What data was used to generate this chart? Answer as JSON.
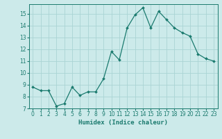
{
  "x": [
    0,
    1,
    2,
    3,
    4,
    5,
    6,
    7,
    8,
    9,
    10,
    11,
    12,
    13,
    14,
    15,
    16,
    17,
    18,
    19,
    20,
    21,
    22,
    23
  ],
  "y": [
    8.8,
    8.5,
    8.5,
    7.2,
    7.4,
    8.8,
    8.1,
    8.4,
    8.4,
    9.5,
    11.8,
    11.1,
    13.8,
    14.9,
    15.5,
    13.8,
    15.2,
    14.5,
    13.8,
    13.4,
    13.1,
    11.6,
    11.2,
    11.0
  ],
  "line_color": "#1a7a6e",
  "marker": "D",
  "marker_size": 2,
  "bg_color": "#cceaea",
  "grid_color": "#aad4d4",
  "xlabel": "Humidex (Indice chaleur)",
  "ylim": [
    7,
    15.8
  ],
  "yticks": [
    7,
    8,
    9,
    10,
    11,
    12,
    13,
    14,
    15
  ],
  "xticks": [
    0,
    1,
    2,
    3,
    4,
    5,
    6,
    7,
    8,
    9,
    10,
    11,
    12,
    13,
    14,
    15,
    16,
    17,
    18,
    19,
    20,
    21,
    22,
    23
  ],
  "xtick_labels": [
    "0",
    "1",
    "2",
    "3",
    "4",
    "5",
    "6",
    "7",
    "8",
    "9",
    "10",
    "11",
    "12",
    "13",
    "14",
    "15",
    "16",
    "17",
    "18",
    "19",
    "20",
    "21",
    "22",
    "23"
  ],
  "tick_color": "#1a7a6e",
  "label_fontsize": 6.5,
  "tick_fontsize": 5.5,
  "linewidth": 0.9
}
